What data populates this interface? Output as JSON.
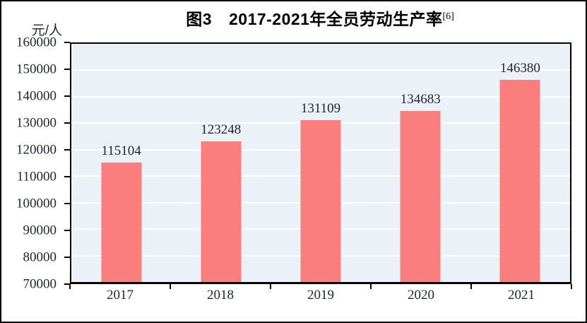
{
  "page": {
    "background": "#FFFFFF",
    "outer_border_color": "#000000"
  },
  "chart_data": {
    "type": "bar",
    "title": {
      "figure_label": "图3",
      "text": "2017-2021年全员劳动生产率",
      "footnote_superscript": "[6]"
    },
    "unit_label": "元/人",
    "categories": [
      "2017",
      "2018",
      "2019",
      "2020",
      "2021"
    ],
    "values": [
      115104,
      123248,
      131109,
      134683,
      146380
    ],
    "value_labels": [
      "115104",
      "123248",
      "131109",
      "134683",
      "146380"
    ],
    "ylabel": "元/人",
    "xlabel": "",
    "ylim": [
      70000,
      160000
    ],
    "ytick_interval": 10000,
    "ytick_labels": [
      "70000",
      "80000",
      "90000",
      "100000",
      "110000",
      "120000",
      "130000",
      "140000",
      "150000",
      "160000"
    ],
    "grid": true,
    "legend_position": "none",
    "colors": {
      "bar": "#FB7E7E",
      "plot_background": "#EAF2F8",
      "gridline": "#FFFFFF",
      "axis": "#000000",
      "text": "#1E2430"
    }
  }
}
